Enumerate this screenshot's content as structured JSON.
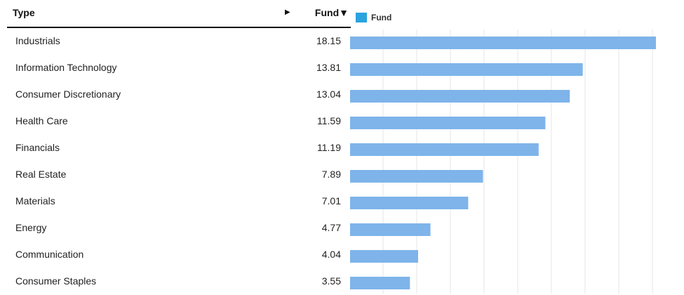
{
  "table": {
    "type_header": "Type",
    "fund_header": "Fund",
    "sort_indicator": "▼",
    "expand_icon": "▶"
  },
  "colors": {
    "bar": "#7eb4ea",
    "legend": "#2aa3df",
    "grid": "#e6e6e6"
  },
  "chart_data": {
    "type": "bar",
    "orientation": "horizontal",
    "categories": [
      "Industrials",
      "Information Technology",
      "Consumer Discretionary",
      "Health Care",
      "Financials",
      "Real Estate",
      "Materials",
      "Energy",
      "Communication",
      "Consumer Staples"
    ],
    "series": [
      {
        "name": "Fund",
        "values": [
          18.15,
          13.81,
          13.04,
          11.59,
          11.19,
          7.89,
          7.01,
          4.77,
          4.04,
          3.55
        ]
      }
    ],
    "value_labels": [
      "18.15",
      "13.81",
      "13.04",
      "11.59",
      "11.19",
      "7.89",
      "7.01",
      "4.77",
      "4.04",
      "3.55"
    ],
    "xlim": [
      0,
      18.15
    ],
    "grid": true,
    "legend": "top-left"
  }
}
